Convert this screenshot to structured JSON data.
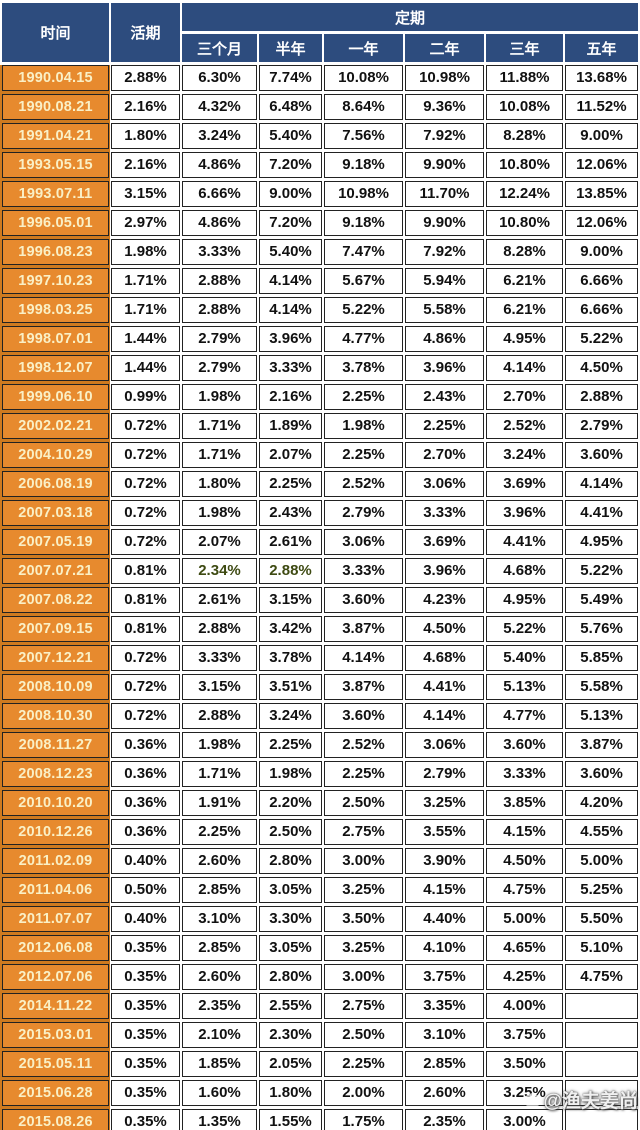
{
  "chart_data": {
    "type": "table",
    "header": {
      "time": "时间",
      "demand": "活期",
      "fixed_group": "定期",
      "terms": [
        "三个月",
        "半年",
        "一年",
        "二年",
        "三年",
        "五年"
      ]
    },
    "columns": [
      "时间",
      "活期",
      "三个月",
      "半年",
      "一年",
      "二年",
      "三年",
      "五年"
    ],
    "rows": [
      {
        "date": "1990.04.15",
        "values": [
          "2.88%",
          "6.30%",
          "7.74%",
          "10.08%",
          "10.98%",
          "11.88%",
          "13.68%"
        ]
      },
      {
        "date": "1990.08.21",
        "values": [
          "2.16%",
          "4.32%",
          "6.48%",
          "8.64%",
          "9.36%",
          "10.08%",
          "11.52%"
        ]
      },
      {
        "date": "1991.04.21",
        "values": [
          "1.80%",
          "3.24%",
          "5.40%",
          "7.56%",
          "7.92%",
          "8.28%",
          "9.00%"
        ]
      },
      {
        "date": "1993.05.15",
        "values": [
          "2.16%",
          "4.86%",
          "7.20%",
          "9.18%",
          "9.90%",
          "10.80%",
          "12.06%"
        ]
      },
      {
        "date": "1993.07.11",
        "values": [
          "3.15%",
          "6.66%",
          "9.00%",
          "10.98%",
          "11.70%",
          "12.24%",
          "13.85%"
        ]
      },
      {
        "date": "1996.05.01",
        "values": [
          "2.97%",
          "4.86%",
          "7.20%",
          "9.18%",
          "9.90%",
          "10.80%",
          "12.06%"
        ]
      },
      {
        "date": "1996.08.23",
        "values": [
          "1.98%",
          "3.33%",
          "5.40%",
          "7.47%",
          "7.92%",
          "8.28%",
          "9.00%"
        ]
      },
      {
        "date": "1997.10.23",
        "values": [
          "1.71%",
          "2.88%",
          "4.14%",
          "5.67%",
          "5.94%",
          "6.21%",
          "6.66%"
        ]
      },
      {
        "date": "1998.03.25",
        "values": [
          "1.71%",
          "2.88%",
          "4.14%",
          "5.22%",
          "5.58%",
          "6.21%",
          "6.66%"
        ]
      },
      {
        "date": "1998.07.01",
        "values": [
          "1.44%",
          "2.79%",
          "3.96%",
          "4.77%",
          "4.86%",
          "4.95%",
          "5.22%"
        ]
      },
      {
        "date": "1998.12.07",
        "values": [
          "1.44%",
          "2.79%",
          "3.33%",
          "3.78%",
          "3.96%",
          "4.14%",
          "4.50%"
        ]
      },
      {
        "date": "1999.06.10",
        "values": [
          "0.99%",
          "1.98%",
          "2.16%",
          "2.25%",
          "2.43%",
          "2.70%",
          "2.88%"
        ]
      },
      {
        "date": "2002.02.21",
        "values": [
          "0.72%",
          "1.71%",
          "1.89%",
          "1.98%",
          "2.25%",
          "2.52%",
          "2.79%"
        ]
      },
      {
        "date": "2004.10.29",
        "values": [
          "0.72%",
          "1.71%",
          "2.07%",
          "2.25%",
          "2.70%",
          "3.24%",
          "3.60%"
        ]
      },
      {
        "date": "2006.08.19",
        "values": [
          "0.72%",
          "1.80%",
          "2.25%",
          "2.52%",
          "3.06%",
          "3.69%",
          "4.14%"
        ]
      },
      {
        "date": "2007.03.18",
        "values": [
          "0.72%",
          "1.98%",
          "2.43%",
          "2.79%",
          "3.33%",
          "3.96%",
          "4.41%"
        ]
      },
      {
        "date": "2007.05.19",
        "values": [
          "0.72%",
          "2.07%",
          "2.61%",
          "3.06%",
          "3.69%",
          "4.41%",
          "4.95%"
        ]
      },
      {
        "date": "2007.07.21",
        "values": [
          "0.81%",
          "2.34%",
          "2.88%",
          "3.33%",
          "3.96%",
          "4.68%",
          "5.22%"
        ],
        "highlight": [
          1,
          2
        ]
      },
      {
        "date": "2007.08.22",
        "values": [
          "0.81%",
          "2.61%",
          "3.15%",
          "3.60%",
          "4.23%",
          "4.95%",
          "5.49%"
        ]
      },
      {
        "date": "2007.09.15",
        "values": [
          "0.81%",
          "2.88%",
          "3.42%",
          "3.87%",
          "4.50%",
          "5.22%",
          "5.76%"
        ]
      },
      {
        "date": "2007.12.21",
        "values": [
          "0.72%",
          "3.33%",
          "3.78%",
          "4.14%",
          "4.68%",
          "5.40%",
          "5.85%"
        ]
      },
      {
        "date": "2008.10.09",
        "values": [
          "0.72%",
          "3.15%",
          "3.51%",
          "3.87%",
          "4.41%",
          "5.13%",
          "5.58%"
        ]
      },
      {
        "date": "2008.10.30",
        "values": [
          "0.72%",
          "2.88%",
          "3.24%",
          "3.60%",
          "4.14%",
          "4.77%",
          "5.13%"
        ]
      },
      {
        "date": "2008.11.27",
        "values": [
          "0.36%",
          "1.98%",
          "2.25%",
          "2.52%",
          "3.06%",
          "3.60%",
          "3.87%"
        ]
      },
      {
        "date": "2008.12.23",
        "values": [
          "0.36%",
          "1.71%",
          "1.98%",
          "2.25%",
          "2.79%",
          "3.33%",
          "3.60%"
        ]
      },
      {
        "date": "2010.10.20",
        "values": [
          "0.36%",
          "1.91%",
          "2.20%",
          "2.50%",
          "3.25%",
          "3.85%",
          "4.20%"
        ]
      },
      {
        "date": "2010.12.26",
        "values": [
          "0.36%",
          "2.25%",
          "2.50%",
          "2.75%",
          "3.55%",
          "4.15%",
          "4.55%"
        ]
      },
      {
        "date": "2011.02.09",
        "values": [
          "0.40%",
          "2.60%",
          "2.80%",
          "3.00%",
          "3.90%",
          "4.50%",
          "5.00%"
        ]
      },
      {
        "date": "2011.04.06",
        "values": [
          "0.50%",
          "2.85%",
          "3.05%",
          "3.25%",
          "4.15%",
          "4.75%",
          "5.25%"
        ]
      },
      {
        "date": "2011.07.07",
        "values": [
          "0.40%",
          "3.10%",
          "3.30%",
          "3.50%",
          "4.40%",
          "5.00%",
          "5.50%"
        ]
      },
      {
        "date": "2012.06.08",
        "values": [
          "0.35%",
          "2.85%",
          "3.05%",
          "3.25%",
          "4.10%",
          "4.65%",
          "5.10%"
        ]
      },
      {
        "date": "2012.07.06",
        "values": [
          "0.35%",
          "2.60%",
          "2.80%",
          "3.00%",
          "3.75%",
          "4.25%",
          "4.75%"
        ]
      },
      {
        "date": "2014.11.22",
        "values": [
          "0.35%",
          "2.35%",
          "2.55%",
          "2.75%",
          "3.35%",
          "4.00%",
          ""
        ]
      },
      {
        "date": "2015.03.01",
        "values": [
          "0.35%",
          "2.10%",
          "2.30%",
          "2.50%",
          "3.10%",
          "3.75%",
          ""
        ]
      },
      {
        "date": "2015.05.11",
        "values": [
          "0.35%",
          "1.85%",
          "2.05%",
          "2.25%",
          "2.85%",
          "3.50%",
          ""
        ]
      },
      {
        "date": "2015.06.28",
        "values": [
          "0.35%",
          "1.60%",
          "1.80%",
          "2.00%",
          "2.60%",
          "3.25%",
          ""
        ]
      },
      {
        "date": "2015.08.26",
        "values": [
          "0.35%",
          "1.35%",
          "1.55%",
          "1.75%",
          "2.35%",
          "3.00%",
          ""
        ]
      }
    ]
  },
  "watermark": {
    "text": "@渔夫姜尚",
    "icon": "camera-icon"
  },
  "colors": {
    "header_bg": "#2d4c7e",
    "header_text": "#ffffff",
    "date_bg": "#e78a2e",
    "date_strip": "#cf7a1f",
    "date_text": "#faf0c6",
    "value_text": "#111111",
    "highlight_text": "#3e4a12",
    "border": "#222222",
    "background": "#ffffff"
  }
}
